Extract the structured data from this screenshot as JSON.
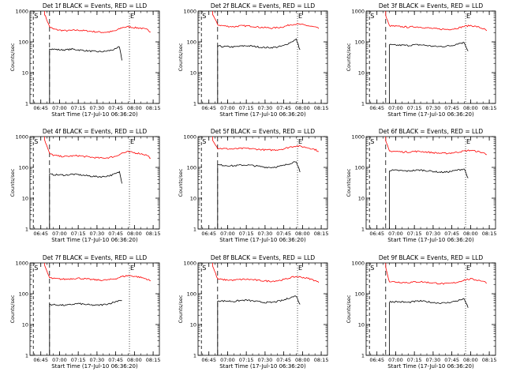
{
  "chart_data": [
    {
      "type": "line",
      "title": "Det 1f BLACK = Events, RED = LLD",
      "ylabel": "Counts/sec",
      "xlabel": "Start Time (17-Jul-10 06:36:20)",
      "ylog": true,
      "ylim": [
        1,
        1000
      ],
      "y_ticks": [
        "1",
        "10",
        "100",
        "1000"
      ],
      "x_ticks": [
        "06:45",
        "07:00",
        "07:15",
        "07:30",
        "07:45",
        "08:00",
        "08:15"
      ],
      "markers": [
        "S",
        "E"
      ],
      "series": [
        {
          "color": "#ff0000",
          "x": [
            "06:48",
            "06:52",
            "06:55",
            "07:00",
            "07:05",
            "07:10",
            "07:15",
            "07:20",
            "07:25",
            "07:30",
            "07:35",
            "07:40",
            "07:45",
            "07:50",
            "07:55",
            "08:00",
            "08:05",
            "08:10",
            "08:13"
          ],
          "y": [
            800,
            310,
            260,
            240,
            230,
            235,
            240,
            230,
            220,
            210,
            205,
            210,
            230,
            290,
            310,
            290,
            280,
            250,
            210
          ]
        },
        {
          "color": "#000000",
          "x": [
            "06:52",
            "06:55",
            "07:00",
            "07:05",
            "07:10",
            "07:15",
            "07:20",
            "07:25",
            "07:30",
            "07:35",
            "07:40",
            "07:45",
            "07:48",
            "07:50"
          ],
          "y": [
            60,
            58,
            55,
            55,
            58,
            55,
            52,
            50,
            48,
            48,
            52,
            58,
            70,
            25
          ]
        }
      ]
    },
    {
      "type": "line",
      "title": "Det 2f BLACK = Events, RED = LLD",
      "ylabel": "Counts/sec",
      "xlabel": "Start Time (17-Jul-10 06:36:20)",
      "ylog": true,
      "ylim": [
        1,
        1000
      ],
      "y_ticks": [
        "1",
        "10",
        "100",
        "1000"
      ],
      "x_ticks": [
        "06:45",
        "07:00",
        "07:15",
        "07:30",
        "07:45",
        "08:00",
        "08:15"
      ],
      "markers": [
        "S",
        "E"
      ],
      "series": [
        {
          "color": "#ff0000",
          "x": [
            "06:48",
            "06:52",
            "06:55",
            "07:00",
            "07:05",
            "07:10",
            "07:15",
            "07:20",
            "07:25",
            "07:30",
            "07:35",
            "07:40",
            "07:45",
            "07:50",
            "07:55",
            "08:00",
            "08:05",
            "08:10",
            "08:13"
          ],
          "y": [
            800,
            360,
            340,
            320,
            310,
            330,
            330,
            320,
            300,
            290,
            280,
            290,
            310,
            360,
            380,
            360,
            330,
            300,
            270
          ]
        },
        {
          "color": "#000000",
          "x": [
            "06:52",
            "06:55",
            "07:00",
            "07:05",
            "07:10",
            "07:15",
            "07:20",
            "07:25",
            "07:30",
            "07:35",
            "07:40",
            "07:45",
            "07:50",
            "07:55",
            "07:58"
          ],
          "y": [
            75,
            70,
            70,
            68,
            72,
            75,
            72,
            68,
            65,
            65,
            68,
            75,
            95,
            120,
            55
          ]
        }
      ]
    },
    {
      "type": "line",
      "title": "Det 3f BLACK = Events, RED = LLD",
      "ylabel": "Counts/sec",
      "xlabel": "Start Time (17-Jul-10 06:36:20)",
      "ylog": true,
      "ylim": [
        1,
        1000
      ],
      "y_ticks": [
        "1",
        "10",
        "100",
        "1000"
      ],
      "x_ticks": [
        "06:45",
        "07:00",
        "07:15",
        "07:30",
        "07:45",
        "08:00",
        "08:15"
      ],
      "markers": [
        "S",
        "E"
      ],
      "series": [
        {
          "color": "#ff0000",
          "x": [
            "06:52",
            "06:55",
            "07:00",
            "07:05",
            "07:10",
            "07:15",
            "07:20",
            "07:25",
            "07:30",
            "07:35",
            "07:40",
            "07:45",
            "07:50",
            "07:55",
            "08:00",
            "08:05",
            "08:10",
            "08:13"
          ],
          "y": [
            700,
            330,
            320,
            310,
            300,
            310,
            300,
            285,
            270,
            260,
            255,
            260,
            280,
            320,
            340,
            310,
            270,
            230
          ]
        },
        {
          "color": "#000000",
          "x": [
            "06:55",
            "07:00",
            "07:05",
            "07:10",
            "07:15",
            "07:20",
            "07:25",
            "07:30",
            "07:35",
            "07:40",
            "07:45",
            "07:50",
            "07:55",
            "07:58"
          ],
          "y": [
            80,
            78,
            78,
            76,
            80,
            80,
            76,
            72,
            70,
            72,
            76,
            88,
            95,
            50
          ]
        }
      ]
    },
    {
      "type": "line",
      "title": "Det 4f BLACK = Events, RED = LLD",
      "ylabel": "Counts/sec",
      "xlabel": "Start Time (17-Jul-10 06:36:20)",
      "ylog": true,
      "ylim": [
        1,
        1000
      ],
      "y_ticks": [
        "1",
        "10",
        "100",
        "1000"
      ],
      "x_ticks": [
        "06:45",
        "07:00",
        "07:15",
        "07:30",
        "07:45",
        "08:00",
        "08:15"
      ],
      "markers": [
        "S",
        "E"
      ],
      "series": [
        {
          "color": "#ff0000",
          "x": [
            "06:48",
            "06:52",
            "06:55",
            "07:00",
            "07:05",
            "07:10",
            "07:15",
            "07:20",
            "07:25",
            "07:30",
            "07:35",
            "07:40",
            "07:45",
            "07:50",
            "07:55",
            "08:00",
            "08:05",
            "08:10",
            "08:13"
          ],
          "y": [
            800,
            280,
            250,
            230,
            225,
            235,
            240,
            225,
            215,
            205,
            200,
            210,
            230,
            290,
            320,
            300,
            280,
            250,
            200
          ]
        },
        {
          "color": "#000000",
          "x": [
            "06:52",
            "06:55",
            "07:00",
            "07:05",
            "07:10",
            "07:15",
            "07:20",
            "07:25",
            "07:30",
            "07:35",
            "07:40",
            "07:45",
            "07:48",
            "07:50"
          ],
          "y": [
            60,
            58,
            57,
            56,
            60,
            58,
            55,
            52,
            50,
            50,
            54,
            62,
            72,
            30
          ]
        }
      ]
    },
    {
      "type": "line",
      "title": "Det 5f BLACK = Events, RED = LLD",
      "ylabel": "Counts/sec",
      "xlabel": "Start Time (17-Jul-10 06:36:20)",
      "ylog": true,
      "ylim": [
        1,
        1000
      ],
      "y_ticks": [
        "1",
        "10",
        "100",
        "1000"
      ],
      "x_ticks": [
        "06:45",
        "07:00",
        "07:15",
        "07:30",
        "07:45",
        "08:00",
        "08:15"
      ],
      "markers": [
        "S",
        "E"
      ],
      "series": [
        {
          "color": "#ff0000",
          "x": [
            "06:48",
            "06:52",
            "06:55",
            "07:00",
            "07:05",
            "07:10",
            "07:15",
            "07:20",
            "07:25",
            "07:30",
            "07:35",
            "07:40",
            "07:45",
            "07:50",
            "07:55",
            "08:00",
            "08:05",
            "08:10",
            "08:13"
          ],
          "y": [
            800,
            420,
            410,
            400,
            395,
            410,
            415,
            400,
            385,
            370,
            365,
            375,
            400,
            460,
            500,
            470,
            430,
            380,
            330
          ]
        },
        {
          "color": "#000000",
          "x": [
            "06:52",
            "06:55",
            "07:00",
            "07:05",
            "07:10",
            "07:15",
            "07:20",
            "07:25",
            "07:30",
            "07:35",
            "07:40",
            "07:45",
            "07:50",
            "07:55",
            "07:58"
          ],
          "y": [
            120,
            118,
            115,
            112,
            118,
            120,
            115,
            108,
            102,
            100,
            105,
            115,
            135,
            160,
            70
          ]
        }
      ]
    },
    {
      "type": "line",
      "title": "Det 6f BLACK = Events, RED = LLD",
      "ylabel": "Counts/sec",
      "xlabel": "Start Time (17-Jul-10 06:36:20)",
      "ylog": true,
      "ylim": [
        1,
        1000
      ],
      "y_ticks": [
        "1",
        "10",
        "100",
        "1000"
      ],
      "x_ticks": [
        "06:45",
        "07:00",
        "07:15",
        "07:30",
        "07:45",
        "08:00",
        "08:15"
      ],
      "markers": [
        "S",
        "E"
      ],
      "series": [
        {
          "color": "#ff0000",
          "x": [
            "06:52",
            "06:55",
            "07:00",
            "07:05",
            "07:10",
            "07:15",
            "07:20",
            "07:25",
            "07:30",
            "07:35",
            "07:40",
            "07:45",
            "07:50",
            "07:55",
            "08:00",
            "08:05",
            "08:10",
            "08:13"
          ],
          "y": [
            700,
            340,
            330,
            320,
            315,
            330,
            330,
            315,
            300,
            290,
            285,
            295,
            315,
            340,
            360,
            330,
            300,
            260
          ]
        },
        {
          "color": "#000000",
          "x": [
            "06:55",
            "07:00",
            "07:05",
            "07:10",
            "07:15",
            "07:20",
            "07:25",
            "07:30",
            "07:35",
            "07:40",
            "07:45",
            "07:50",
            "07:55",
            "07:58"
          ],
          "y": [
            80,
            80,
            78,
            76,
            80,
            82,
            78,
            74,
            70,
            70,
            75,
            82,
            90,
            45
          ]
        }
      ]
    },
    {
      "type": "line",
      "title": "Det 7f BLACK = Events, RED = LLD",
      "ylabel": "Counts/sec",
      "xlabel": "Start Time (17-Jul-10 06:36:20)",
      "ylog": true,
      "ylim": [
        1,
        1000
      ],
      "y_ticks": [
        "1",
        "10",
        "100",
        "1000"
      ],
      "x_ticks": [
        "06:45",
        "07:00",
        "07:15",
        "07:30",
        "07:45",
        "08:00",
        "08:15"
      ],
      "markers": [
        "S",
        "E"
      ],
      "series": [
        {
          "color": "#ff0000",
          "x": [
            "06:48",
            "06:52",
            "06:55",
            "07:00",
            "07:05",
            "07:10",
            "07:15",
            "07:20",
            "07:25",
            "07:30",
            "07:35",
            "07:40",
            "07:45",
            "07:50",
            "07:55",
            "08:00",
            "08:05",
            "08:10",
            "08:13"
          ],
          "y": [
            800,
            330,
            310,
            300,
            295,
            310,
            320,
            305,
            290,
            280,
            275,
            285,
            310,
            360,
            390,
            370,
            340,
            300,
            260
          ]
        },
        {
          "color": "#000000",
          "x": [
            "06:52",
            "06:55",
            "07:00",
            "07:05",
            "07:10",
            "07:15",
            "07:20",
            "07:25",
            "07:30",
            "07:35",
            "07:40",
            "07:45",
            "07:48",
            "07:50"
          ],
          "y": [
            45,
            44,
            43,
            42,
            45,
            48,
            45,
            43,
            42,
            44,
            48,
            55,
            62,
            60
          ]
        }
      ]
    },
    {
      "type": "line",
      "title": "Det 8f BLACK = Events, RED = LLD",
      "ylabel": "Counts/sec",
      "xlabel": "Start Time (17-Jul-10 06:36:20)",
      "ylog": true,
      "ylim": [
        1,
        1000
      ],
      "y_ticks": [
        "1",
        "10",
        "100",
        "1000"
      ],
      "x_ticks": [
        "06:45",
        "07:00",
        "07:15",
        "07:30",
        "07:45",
        "08:00",
        "08:15"
      ],
      "markers": [
        "S",
        "E"
      ],
      "series": [
        {
          "color": "#ff0000",
          "x": [
            "06:48",
            "06:52",
            "06:55",
            "07:00",
            "07:05",
            "07:10",
            "07:15",
            "07:20",
            "07:25",
            "07:30",
            "07:35",
            "07:40",
            "07:45",
            "07:50",
            "07:55",
            "08:00",
            "08:05",
            "08:10",
            "08:13"
          ],
          "y": [
            800,
            300,
            290,
            280,
            275,
            290,
            295,
            285,
            270,
            260,
            255,
            265,
            285,
            330,
            360,
            340,
            310,
            270,
            230
          ]
        },
        {
          "color": "#000000",
          "x": [
            "06:52",
            "06:55",
            "07:00",
            "07:05",
            "07:10",
            "07:15",
            "07:20",
            "07:25",
            "07:30",
            "07:35",
            "07:40",
            "07:45",
            "07:50",
            "07:55",
            "07:58"
          ],
          "y": [
            60,
            58,
            58,
            56,
            60,
            62,
            58,
            55,
            52,
            52,
            56,
            62,
            75,
            85,
            45
          ]
        }
      ]
    },
    {
      "type": "line",
      "title": "Det 9f BLACK = Events, RED = LLD",
      "ylabel": "Counts/sec",
      "xlabel": "Start Time (17-Jul-10 06:36:20)",
      "ylog": true,
      "ylim": [
        1,
        1000
      ],
      "y_ticks": [
        "1",
        "10",
        "100",
        "1000"
      ],
      "x_ticks": [
        "06:45",
        "07:00",
        "07:15",
        "07:30",
        "07:45",
        "08:00",
        "08:15"
      ],
      "markers": [
        "S",
        "E"
      ],
      "series": [
        {
          "color": "#ff0000",
          "x": [
            "06:52",
            "06:55",
            "07:00",
            "07:05",
            "07:10",
            "07:15",
            "07:20",
            "07:25",
            "07:30",
            "07:35",
            "07:40",
            "07:45",
            "07:50",
            "07:55",
            "08:00",
            "08:05",
            "08:10",
            "08:13"
          ],
          "y": [
            700,
            250,
            240,
            235,
            230,
            240,
            245,
            235,
            225,
            215,
            210,
            220,
            240,
            280,
            300,
            280,
            260,
            220
          ]
        },
        {
          "color": "#000000",
          "x": [
            "06:55",
            "07:00",
            "07:05",
            "07:10",
            "07:15",
            "07:20",
            "07:25",
            "07:30",
            "07:35",
            "07:40",
            "07:45",
            "07:50",
            "07:55",
            "07:58"
          ],
          "y": [
            55,
            55,
            54,
            52,
            56,
            58,
            55,
            52,
            50,
            50,
            54,
            60,
            68,
            35
          ]
        }
      ]
    }
  ]
}
